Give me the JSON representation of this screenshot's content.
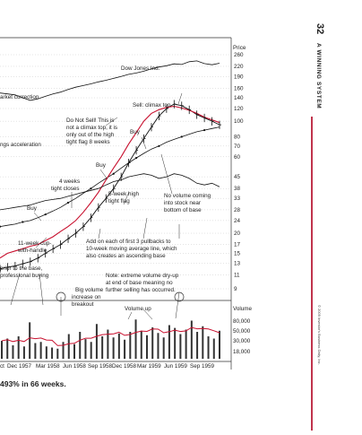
{
  "page": {
    "number": "32",
    "section_title": "A WINNING SYSTEM",
    "copyright": "© 2009 Investor's Business Daily, Inc.",
    "caption": "493% in 66 weeks."
  },
  "chart_data": {
    "type": "line",
    "price_axis_label": "Price",
    "price_ticks": [
      260,
      220,
      190,
      160,
      140,
      120,
      100,
      80,
      70,
      60,
      45,
      38,
      33,
      28,
      24,
      20,
      17,
      15,
      13,
      11,
      9
    ],
    "scale": "log",
    "volume_axis_label": "Volume",
    "volume_ticks": [
      "80,000",
      "50,000",
      "30,000",
      "18,000"
    ],
    "x_ticks": [
      "ct",
      "Dec 1957",
      "Mar 1958",
      "Jun 1958",
      "Sep 1958",
      "Dec 1958",
      "Mar 1959",
      "Jun 1959",
      "Sep 1959"
    ],
    "series": [
      {
        "name": "Dow Jones Ind.",
        "values": [
          150,
          148,
          146,
          140,
          135,
          138,
          143,
          148,
          152,
          158,
          163,
          167,
          171,
          176,
          180,
          185,
          190,
          196,
          200,
          205,
          212,
          218,
          222,
          228,
          226,
          235,
          238,
          229,
          225,
          230
        ]
      },
      {
        "values": [
          12,
          12.3,
          12.5,
          12.9,
          13.3,
          14,
          15,
          16,
          17,
          18.5,
          20,
          22,
          25,
          29,
          33,
          38,
          45,
          55,
          66,
          78,
          92,
          108,
          120,
          128,
          125,
          118,
          110,
          105,
          100,
          95
        ]
      },
      {
        "values": [
          22,
          22.4,
          22.8,
          23.5,
          24,
          25,
          26.2,
          27.5,
          29,
          31,
          33,
          35.5,
          38,
          41,
          44,
          47,
          51,
          55,
          59,
          63,
          67,
          70,
          74,
          77,
          80,
          83,
          86,
          88,
          90,
          92
        ]
      },
      {
        "values": [
          14,
          15,
          15.5,
          16,
          16.6,
          17,
          18,
          19,
          20.5,
          22,
          24,
          27,
          31,
          36,
          43,
          51,
          60,
          72,
          85,
          100,
          112,
          118,
          122,
          124,
          121,
          117,
          112,
          106,
          102,
          98
        ]
      },
      {
        "values": [
          28,
          28.5,
          29,
          29.5,
          30,
          31,
          32,
          32.5,
          33,
          34,
          35,
          36,
          37,
          38,
          40,
          42,
          43,
          45,
          46,
          47,
          46,
          44,
          45,
          47,
          46,
          44,
          41,
          40,
          41,
          39
        ]
      }
    ],
    "volume": [
      32,
      36,
      24,
      40,
      22,
      65,
      28,
      30,
      22,
      20,
      18,
      30,
      44,
      26,
      48,
      35,
      30,
      62,
      40,
      52,
      38,
      45,
      34,
      48,
      70,
      50,
      42,
      56,
      46,
      38,
      60,
      55,
      44,
      52,
      68,
      48,
      58,
      40,
      36,
      50
    ]
  },
  "annotations": {
    "dow": "Dow Jones Ind.",
    "market_correction": "arket correction",
    "sell_climax": "Sell: climax top",
    "do_not_sell_1": "Do Not Sell! This is",
    "do_not_sell_2": "not a climax top, it is",
    "do_not_sell_3": "only out of the high",
    "do_not_sell_4": "tight flag 8 weeks",
    "buy_1": "Buy",
    "buy_2": "Buy",
    "buy_3": "Buy",
    "accel": "ngs acceleration",
    "tight_1": "4 weeks",
    "tight_2": "tight closes",
    "flag_1": "5-week high",
    "flag_2": "tight flag",
    "novol_1": "No volume coming",
    "novol_2": "into stock near",
    "novol_3": "bottom of base",
    "cup_1": "11-week cup-",
    "cup_2": "with-handle",
    "add_1": "Add on each of first 3 pullbacks to",
    "add_2": "10-week moving average line, which",
    "add_3": "also creates an ascending base",
    "prior_1": "prior to the base,",
    "prior_2": "professional buying",
    "dryup_1": "Note: extreme volume dry-up",
    "dryup_2": "at end of base meaning no",
    "dryup_3": "further selling has occurred.",
    "bigvol_1": "Big volume",
    "bigvol_2": "increase on",
    "bigvol_3": "breakout",
    "volup": "Volume up"
  }
}
